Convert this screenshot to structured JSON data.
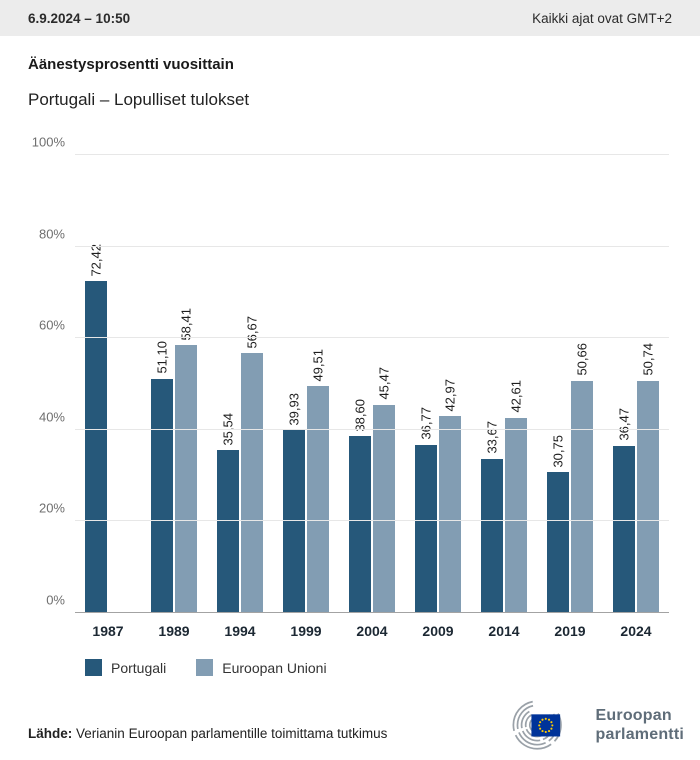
{
  "header": {
    "date_time": "6.9.2024 – 10:50",
    "timezone_note": "Kaikki ajat ovat GMT+2"
  },
  "title": "Äänestysprosentti vuosittain",
  "subtitle": "Portugali – Lopulliset tulokset",
  "chart_data": {
    "type": "bar",
    "title": "Äänestysprosentti vuosittain",
    "subtitle": "Portugali – Lopulliset tulokset",
    "categories": [
      "1987",
      "1989",
      "1994",
      "1999",
      "2004",
      "2009",
      "2014",
      "2019",
      "2024"
    ],
    "series": [
      {
        "name": "Portugali",
        "color": "#26587a",
        "values": [
          72.42,
          51.1,
          35.54,
          39.93,
          38.6,
          36.77,
          33.67,
          30.75,
          36.47
        ],
        "display": [
          "72,42",
          "51,10",
          "35,54",
          "39,93",
          "38,60",
          "36,77",
          "33,67",
          "30,75",
          "36,47"
        ]
      },
      {
        "name": "Euroopan Unioni",
        "color": "#829db3",
        "values": [
          null,
          58.41,
          56.67,
          49.51,
          45.47,
          42.97,
          42.61,
          50.66,
          50.74
        ],
        "display": [
          null,
          "58,41",
          "56,67",
          "49,51",
          "45,47",
          "42,97",
          "42,61",
          "50,66",
          "50,74"
        ]
      }
    ],
    "yticks": [
      0,
      20,
      40,
      60,
      80,
      100
    ],
    "ytick_labels": [
      "0%",
      "20%",
      "40%",
      "60%",
      "80%",
      "100%"
    ],
    "ylim": [
      0,
      100
    ],
    "grid": true,
    "legend_position": "bottom-left",
    "value_label_rotation": -90
  },
  "legend": {
    "items": [
      {
        "label": "Portugali",
        "color": "#26587a"
      },
      {
        "label": "Euroopan Unioni",
        "color": "#829db3"
      }
    ]
  },
  "footer": {
    "source_label": "Lähde:",
    "source_text": "Verianin Euroopan parlamentille toimittama tutkimus"
  },
  "logo": {
    "line1": "Euroopan",
    "line2": "parlamentti",
    "flag_color": "#003399",
    "star_color": "#ffcc00",
    "arc_color": "#9aa1a8",
    "text_color": "#5f6d79",
    "name": "euroopan-parlamentti-logo"
  }
}
